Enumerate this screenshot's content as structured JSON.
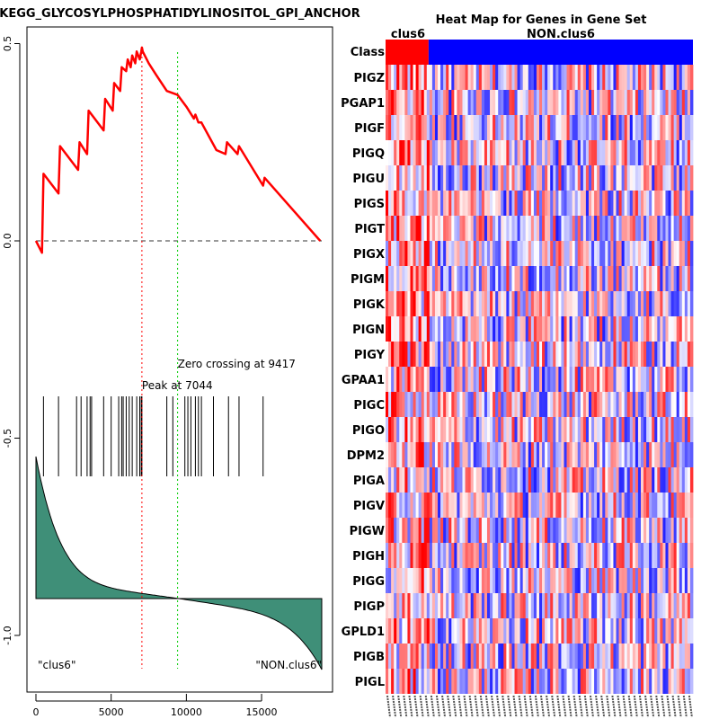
{
  "chart_data": [
    {
      "type": "line",
      "title": "KEGG_GLYCOSYLPHOSPHATIDYLINOSITOL_GPI_ANCHOR",
      "panel": "enrichment-score",
      "xlim": [
        0,
        19000
      ],
      "ylim": [
        -1.1,
        0.55
      ],
      "x_ticks": [
        0,
        5000,
        10000,
        15000
      ],
      "x_tick_labels": [
        "0",
        "5000",
        "10000",
        "15000"
      ],
      "y_ticks": [
        0.5,
        0.0,
        -0.5,
        -1.0
      ],
      "y_tick_labels": [
        "0.5",
        "0.0",
        "-0.5",
        "-1.0"
      ],
      "enrichment_x": [
        0,
        400,
        500,
        1500,
        1600,
        2800,
        2900,
        3400,
        3500,
        4500,
        4600,
        5100,
        5200,
        5600,
        5700,
        6000,
        6100,
        6300,
        6400,
        6600,
        6700,
        6900,
        7000,
        7044,
        7100,
        7500,
        8000,
        8700,
        9417,
        10000,
        10500,
        10600,
        10800,
        11000,
        12000,
        12600,
        12700,
        13400,
        13500,
        15100,
        15200,
        18900
      ],
      "enrichment_y": [
        0.0,
        -0.03,
        0.17,
        0.12,
        0.24,
        0.18,
        0.25,
        0.22,
        0.33,
        0.28,
        0.36,
        0.33,
        0.4,
        0.38,
        0.44,
        0.43,
        0.46,
        0.44,
        0.47,
        0.45,
        0.48,
        0.46,
        0.48,
        0.49,
        0.48,
        0.45,
        0.42,
        0.38,
        0.37,
        0.34,
        0.31,
        0.32,
        0.3,
        0.3,
        0.23,
        0.22,
        0.25,
        0.22,
        0.24,
        0.14,
        0.16,
        0.0
      ],
      "hit_positions": [
        500,
        1500,
        2700,
        3000,
        3400,
        3600,
        3700,
        4500,
        5000,
        5500,
        5700,
        5800,
        6000,
        6200,
        6400,
        6700,
        6900,
        7000,
        7044,
        8700,
        9100,
        9900,
        10100,
        10300,
        10600,
        10800,
        11000,
        11800,
        12800,
        13500,
        15100
      ],
      "peak_label": "Peak at 7044",
      "peak_x": 7044,
      "zero_crossing_label": "Zero crossing at 9417",
      "zero_crossing_x": 9417,
      "left_label": "\"clus6\"",
      "right_label": "\"NON.clus6\"",
      "colors": {
        "curve": "#ff0000",
        "peak_line": "#ff0000",
        "zero_line": "#00cc00",
        "fill": "#3f8f78"
      }
    },
    {
      "type": "heatmap",
      "title": "Heat Map for Genes in Gene Set",
      "class_label": "Class",
      "class_groups": [
        "clus6",
        "NON.clus6"
      ],
      "class_split_fraction": 0.14,
      "genes": [
        "PIGZ",
        "PGAP1",
        "PIGF",
        "PIGQ",
        "PIGU",
        "PIGS",
        "PIGT",
        "PIGX",
        "PIGM",
        "PIGK",
        "PIGN",
        "PIGY",
        "GPAA1",
        "PIGC",
        "PIGO",
        "DPM2",
        "PIGA",
        "PIGV",
        "PIGW",
        "PIGH",
        "PIGG",
        "PIGP",
        "GPLD1",
        "PIGB",
        "PIGL"
      ],
      "colors": {
        "high": "#ff0000",
        "low": "#0000ff",
        "mid": "#ffffff",
        "clus6": "#ff0000",
        "non_clus6": "#0000ff"
      }
    }
  ]
}
